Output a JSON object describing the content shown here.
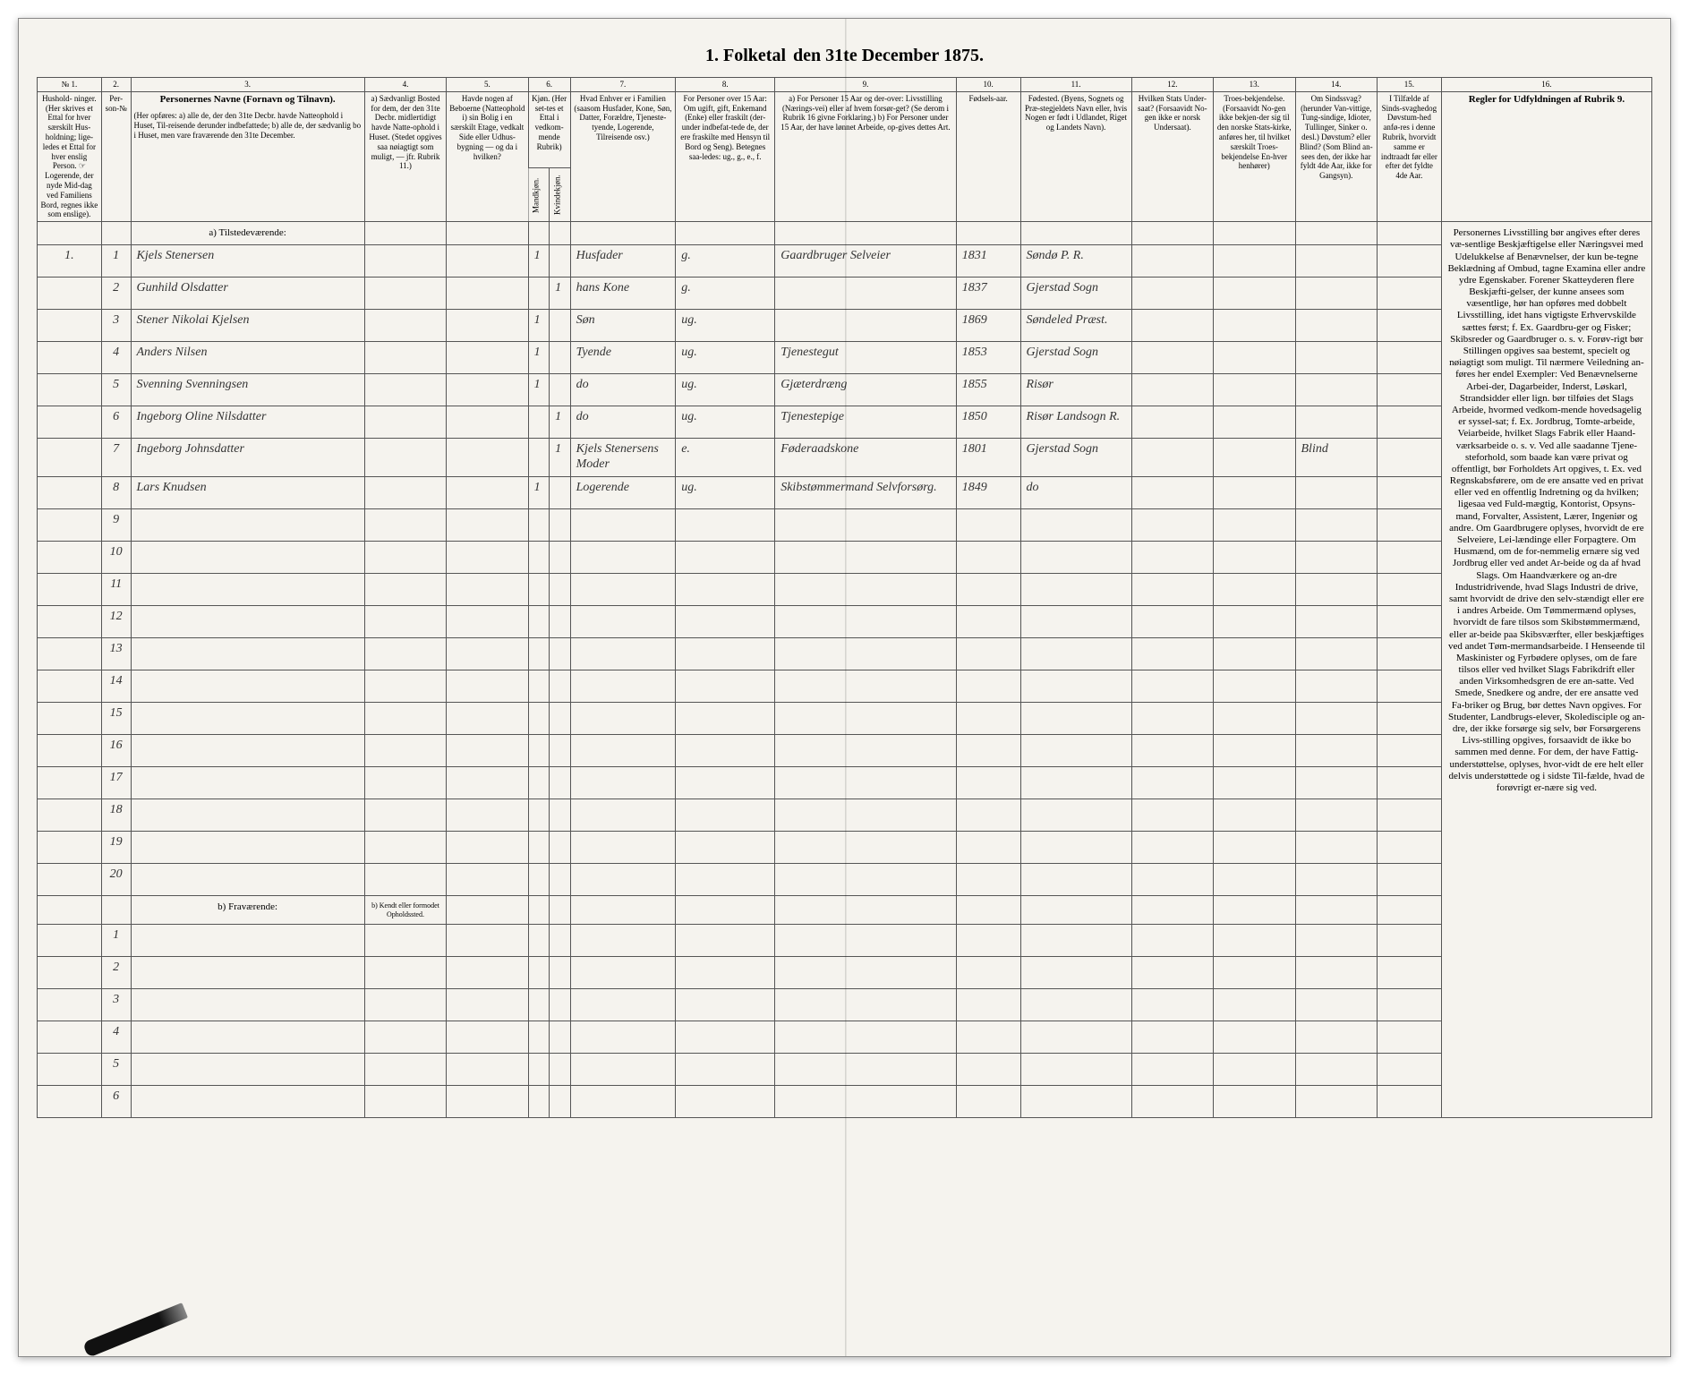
{
  "title": {
    "left": "1. Folketal",
    "right": "den 31te December 1875."
  },
  "column_numbers": [
    "№ 1.",
    "2.",
    "3.",
    "4.",
    "5.",
    "6.",
    "7.",
    "8.",
    "9.",
    "10.",
    "11.",
    "12.",
    "13.",
    "14.",
    "15.",
    "16."
  ],
  "headers": {
    "col1": "Hushold-\nninger.\n(Her skrives et Ettal for hver særskilt Hus-holdning; lige-ledes et Ettal for hver enslig Person.\n☞ Logerende, der nyde Mid-dag ved Familiens Bord, regnes ikke som enslige).",
    "col2": "Per-son-№",
    "col3_title": "Personernes Navne (Fornavn og Tilnavn).",
    "col3_body": "(Her opføres:\na) alle de, der den 31te Decbr. havde Natteophold i Huset, Til-reisende derunder indbefattede;\nb) alle de, der sædvanlig bo i Huset, men vare fraværende den 31te December.",
    "col4": "a) Sædvanligt Bosted for dem, der den 31te Decbr. midlertidigt havde Natte-ophold i Huset.\n(Stedet opgives saa nøiagtigt som muligt, — jfr. Rubrik 11.)",
    "col5": "Havde nogen af Beboerne (Natteophold i) sin Bolig i en særskilt Etage, vedkalt Side eller Udhus-bygning — og da i hvilken?",
    "col6_title": "Kjøn.\n(Her set-tes et Ettal i vedkom-mende Rubrik)",
    "col6a": "Mandkjøn.",
    "col6b": "Kvindekjøn.",
    "col7": "Hvad Enhver er i Familien\n(saasom Husfader, Kone, Søn, Datter, Forældre, Tjeneste-tyende, Logerende, Tilreisende osv.)",
    "col8": "For Personer over 15 Aar:\nOm ugift, gift, Enkemand (Enke) eller fraskilt (der-under indbefat-tede de, der ere fraskilte med Hensyn til Bord og Seng).\nBetegnes saa-ledes:\nug., g., e., f.",
    "col9": "a) For Personer 15 Aar og der-over: Livsstilling (Nærings-vei) eller af hvem forsør-get? (Se derom i Rubrik 16 givne Forklaring.)\nb) For Personer under 15 Aar, der have lønnet Arbeide, op-gives dettes Art.",
    "col10": "Fødsels-aar.",
    "col11": "Fødested.\n(Byens, Sognets og Præ-stegjeldets Navn eller, hvis Nogen er født i Udlandet, Riget og Landets Navn).",
    "col12": "Hvilken Stats Under-saat?\n(Forsaavidt No-gen ikke er norsk Undersaat).",
    "col13": "Troes-bekjendelse.\n(Forsaavidt No-gen ikke bekjen-der sig til den norske Stats-kirke, anføres her, til hvilket særskilt Troes-bekjendelse En-hver henhører)",
    "col14": "Om Sindssvag?\n(herunder Van-vittige, Tung-sindige, Idioter, Tullinger, Sinker o. desl.)\nDøvstum? eller Blind?\n(Som Blind an-sees den, der ikke har fyldt 4de Aar, ikke for Gangsyn).",
    "col15": "I Tilfælde af Sinds-svaghedog Døvstum-hed anfø-res i denne Rubrik, hvorvidt samme er indtraadt før eller efter det fyldte 4de Aar.",
    "col16_title": "Regler for Udfyldningen\naf\nRubrik 9."
  },
  "sections": {
    "present": "a) Tilstedeværende:",
    "absent": "b) Fraværende:",
    "absent_col4": "b) Kendt eller formodet Opholdssted."
  },
  "rows": [
    {
      "hh": "1.",
      "n": "1",
      "name": "Kjels Stenersen",
      "c4": "",
      "c5": "",
      "m": "1",
      "k": "",
      "rel": "Husfader",
      "ms": "g.",
      "occ": "Gaardbruger Selveier",
      "yr": "1831",
      "bp": "Søndø P. R.",
      "c12": "",
      "c13": "",
      "c14": "",
      "c15": ""
    },
    {
      "hh": "",
      "n": "2",
      "name": "Gunhild Olsdatter",
      "c4": "",
      "c5": "",
      "m": "",
      "k": "1",
      "rel": "hans Kone",
      "ms": "g.",
      "occ": "",
      "yr": "1837",
      "bp": "Gjerstad Sogn",
      "c12": "",
      "c13": "",
      "c14": "",
      "c15": ""
    },
    {
      "hh": "",
      "n": "3",
      "name": "Stener Nikolai Kjelsen",
      "c4": "",
      "c5": "",
      "m": "1",
      "k": "",
      "rel": "Søn",
      "ms": "ug.",
      "occ": "",
      "yr": "1869",
      "bp": "Søndeled Præst.",
      "c12": "",
      "c13": "",
      "c14": "",
      "c15": ""
    },
    {
      "hh": "",
      "n": "4",
      "name": "Anders Nilsen",
      "c4": "",
      "c5": "",
      "m": "1",
      "k": "",
      "rel": "Tyende",
      "ms": "ug.",
      "occ": "Tjenestegut",
      "yr": "1853",
      "bp": "Gjerstad Sogn",
      "c12": "",
      "c13": "",
      "c14": "",
      "c15": ""
    },
    {
      "hh": "",
      "n": "5",
      "name": "Svenning Svenningsen",
      "c4": "",
      "c5": "",
      "m": "1",
      "k": "",
      "rel": "do",
      "ms": "ug.",
      "occ": "Gjæterdræng",
      "yr": "1855",
      "bp": "Risør",
      "c12": "",
      "c13": "",
      "c14": "",
      "c15": ""
    },
    {
      "hh": "",
      "n": "6",
      "name": "Ingeborg Oline Nilsdatter",
      "c4": "",
      "c5": "",
      "m": "",
      "k": "1",
      "rel": "do",
      "ms": "ug.",
      "occ": "Tjenestepige",
      "yr": "1850",
      "bp": "Risør Landsogn R.",
      "c12": "",
      "c13": "",
      "c14": "",
      "c15": ""
    },
    {
      "hh": "",
      "n": "7",
      "name": "Ingeborg Johnsdatter",
      "c4": "",
      "c5": "",
      "m": "",
      "k": "1",
      "rel": "Kjels Stenersens Moder",
      "ms": "e.",
      "occ": "Føderaadskone",
      "yr": "1801",
      "bp": "Gjerstad Sogn",
      "c12": "",
      "c13": "",
      "c14": "Blind",
      "c15": ""
    },
    {
      "hh": "",
      "n": "8",
      "name": "Lars Knudsen",
      "c4": "",
      "c5": "",
      "m": "1",
      "k": "",
      "rel": "Logerende",
      "ms": "ug.",
      "occ": "Skibstømmermand Selvforsørg.",
      "yr": "1849",
      "bp": "do",
      "c12": "",
      "c13": "",
      "c14": "",
      "c15": ""
    }
  ],
  "empty_rows_a": [
    "9",
    "10",
    "11",
    "12",
    "13",
    "14",
    "15",
    "16",
    "17",
    "18",
    "19",
    "20"
  ],
  "empty_rows_b": [
    "1",
    "2",
    "3",
    "4",
    "5",
    "6"
  ],
  "rules_text": "Personernes Livsstilling bør angives efter deres væ-sentlige Beskjæftigelse eller Næringsvei med Udelukkelse af Benævnelser, der kun be-tegne Beklædning af Ombud, tagne Examina eller andre ydre Egenskaber. Forener Skatteyderen flere Beskjæfti-gelser, der kunne ansees som væsentlige, hør han opføres med dobbelt Livsstilling, idet hans vigtigste Erhvervskilde sættes først; f. Ex. Gaardbru-ger og Fisker; Skibsreder og Gaardbruger o. s. v. Forøv-rigt bør Stillingen opgives saa bestemt, specielt og nøiagtigt som muligt.\n\nTil nærmere Veiledning an-føres her endel Exempler:\n\nVed Benævnelserne Arbei-der, Dagarbeider, Inderst, Løskarl, Strandsidder eller lign. bør tilføies det Slags Arbeide, hvormed vedkom-mende hovedsagelig er syssel-sat; f. Ex. Jordbrug, Tomte-arbeide, Veiarbeide, hvilket Slags Fabrik eller Haand-værksarbeide o. s. v.\n\nVed alle saadanne Tjene-steforhold, som baade kan være privat og offentligt, bør Forholdets Art opgives, t. Ex. ved Regnskabsførere, om de ere ansatte ved en privat eller ved en offentlig Indretning og da hvilken; ligesaa ved Fuld-mægtig, Kontorist, Opsyns-mand, Forvalter, Assistent, Lærer, Ingeniør og andre.\n\nOm Gaardbrugere oplyses, hvorvidt de ere Selveiere, Lei-lændinge eller Forpagtere.\n\nOm Husmænd, om de for-nemmelig ernære sig ved Jordbrug eller ved andet Ar-beide og da af hvad Slags.\n\nOm Haandværkere og an-dre Industridrivende, hvad Slags Industri de drive, samt hvorvidt de drive den selv-stændigt eller ere i andres Arbeide.\n\nOm Tømmermænd oplyses, hvorvidt de fare tilsos som Skibstømmermænd, eller ar-beide paa Skibsværfter, eller beskjæftiges ved andet Tøm-mermandsarbeide.\n\nI Henseende til Maskinister og Fyrbødere oplyses, om de fare tilsos eller ved hvilket Slags Fabrikdrift eller anden Virksomhedsgren de ere an-satte.\n\nVed Smede, Snedkere og andre, der ere ansatte ved Fa-briker og Brug, bør dettes Navn opgives.\n\nFor Studenter, Landbrugs-elever, Skoledisciple og an-dre, der ikke forsørge sig selv, bør Forsørgerens Livs-stilling opgives, forsaavidt de ikke bo sammen med denne.\n\nFor dem, der have Fattig-understøttelse, oplyses, hvor-vidt de ere helt eller delvis understøttede og i sidste Til-fælde, hvad de forøvrigt er-nære sig ved."
}
